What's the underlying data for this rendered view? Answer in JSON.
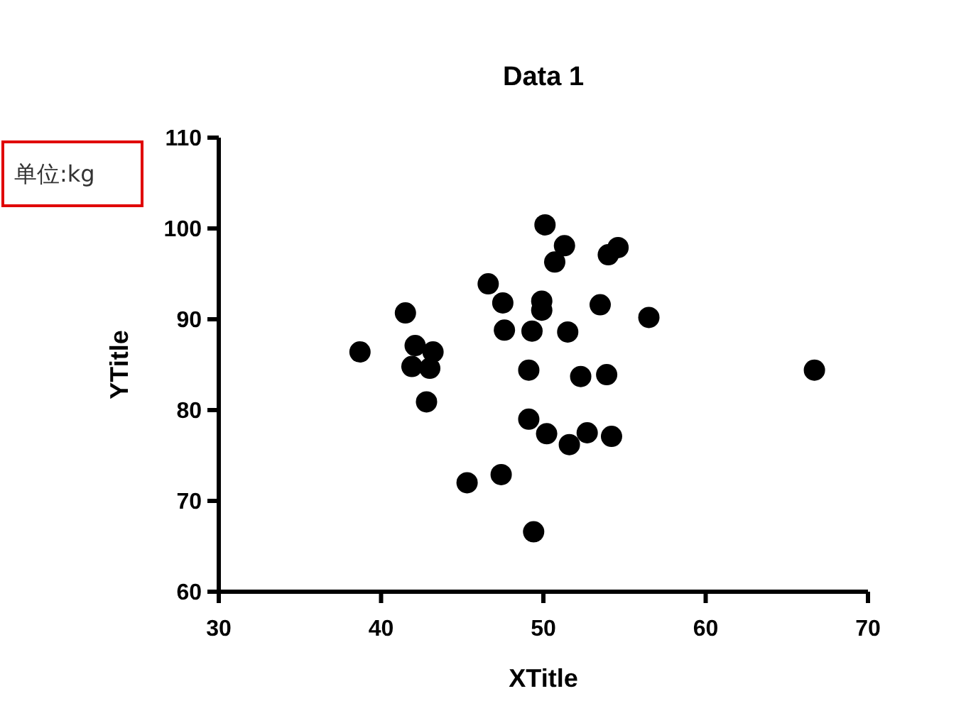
{
  "chart_data": {
    "type": "scatter",
    "title": "Data 1",
    "xlabel": "XTitle",
    "ylabel": "YTitle",
    "annotations": [
      "单位:kg"
    ],
    "x": [
      50.1,
      51.3,
      50.7,
      54.0,
      54.6,
      46.6,
      47.5,
      49.9,
      49.9,
      53.5,
      56.5,
      41.5,
      47.6,
      49.3,
      51.5,
      38.7,
      42.1,
      43.2,
      41.9,
      43.0,
      49.1,
      52.3,
      53.9,
      42.8,
      49.1,
      50.2,
      52.7,
      54.2,
      51.6,
      47.4,
      45.3,
      49.4,
      66.7
    ],
    "series": [
      {
        "color": "#000000",
        "values": [
          100.4,
          98.1,
          96.3,
          97.1,
          97.9,
          93.9,
          91.8,
          92.0,
          91.0,
          91.6,
          90.2,
          90.7,
          88.8,
          88.7,
          88.6,
          86.4,
          87.1,
          86.4,
          84.8,
          84.6,
          84.4,
          83.7,
          83.9,
          80.9,
          79.0,
          77.4,
          77.5,
          77.1,
          76.2,
          72.9,
          72.0,
          66.6,
          84.4
        ]
      }
    ],
    "xlim": [
      30,
      70
    ],
    "xticks": [
      30,
      40,
      50,
      60,
      70
    ],
    "ylim": [
      60,
      110
    ],
    "yticks": [
      60,
      70,
      80,
      90,
      100,
      110
    ],
    "marker": "circle"
  }
}
